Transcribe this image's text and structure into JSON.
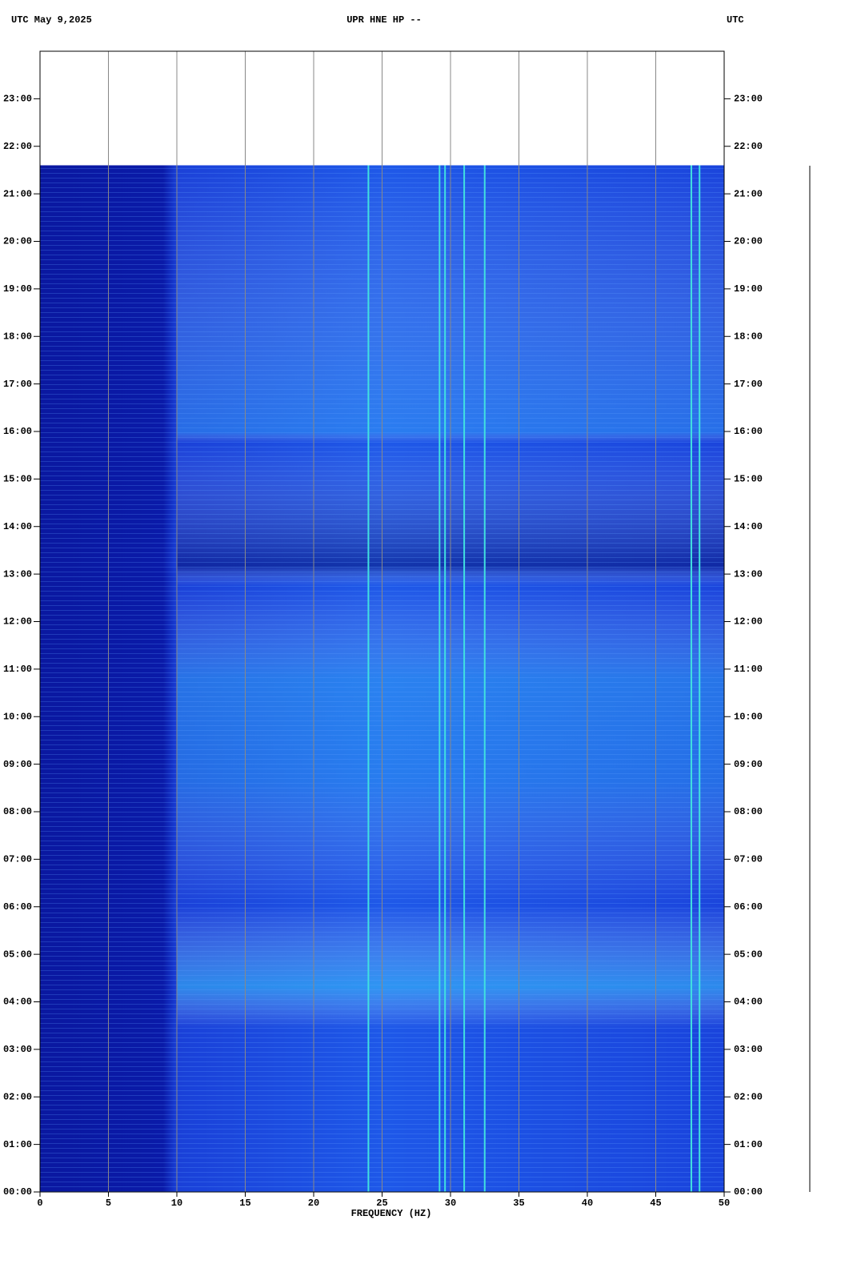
{
  "chart_data": {
    "type": "spectrogram",
    "title": "UPR HNE HP --",
    "date_label": "UTC  May 9,2025",
    "right_label": "UTC",
    "xlabel": "FREQUENCY (HZ)",
    "xlim": [
      0,
      50
    ],
    "xticks": [
      0,
      5,
      10,
      15,
      20,
      25,
      30,
      35,
      40,
      45,
      50
    ],
    "ylim": [
      0,
      24
    ],
    "yticks": [
      {
        "value": 0,
        "label": "00:00"
      },
      {
        "value": 1,
        "label": "01:00"
      },
      {
        "value": 2,
        "label": "02:00"
      },
      {
        "value": 3,
        "label": "03:00"
      },
      {
        "value": 4,
        "label": "04:00"
      },
      {
        "value": 5,
        "label": "05:00"
      },
      {
        "value": 6,
        "label": "06:00"
      },
      {
        "value": 7,
        "label": "07:00"
      },
      {
        "value": 8,
        "label": "08:00"
      },
      {
        "value": 9,
        "label": "09:00"
      },
      {
        "value": 10,
        "label": "10:00"
      },
      {
        "value": 11,
        "label": "11:00"
      },
      {
        "value": 12,
        "label": "12:00"
      },
      {
        "value": 13,
        "label": "13:00"
      },
      {
        "value": 14,
        "label": "14:00"
      },
      {
        "value": 15,
        "label": "15:00"
      },
      {
        "value": 16,
        "label": "16:00"
      },
      {
        "value": 17,
        "label": "17:00"
      },
      {
        "value": 18,
        "label": "18:00"
      },
      {
        "value": 19,
        "label": "19:00"
      },
      {
        "value": 20,
        "label": "20:00"
      },
      {
        "value": 21,
        "label": "21:00"
      },
      {
        "value": 22,
        "label": "22:00"
      },
      {
        "value": 23,
        "label": "23:00"
      }
    ],
    "data_ylim": [
      0,
      21.6
    ],
    "spectral_lines": [
      24,
      29.2,
      29.6,
      31,
      32.5,
      47.6,
      48.2
    ],
    "grid": true,
    "color": "#1a40d8"
  }
}
